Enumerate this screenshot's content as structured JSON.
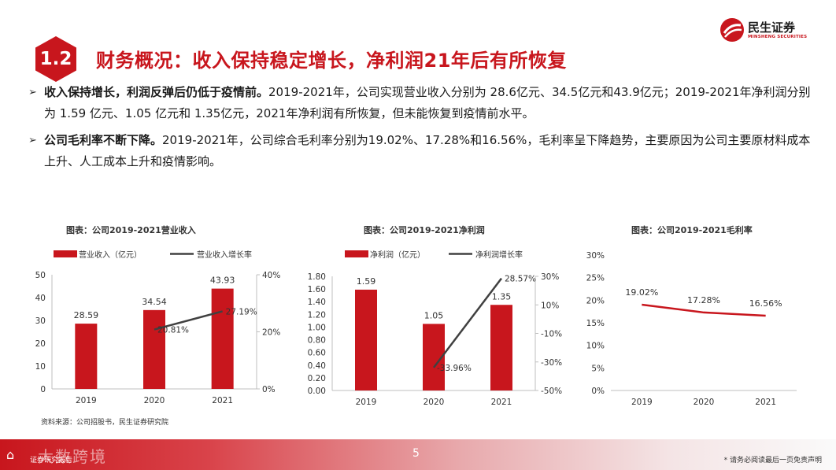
{
  "header": {
    "section_number": "1.2",
    "title": "财务概况：收入保持稳定增长，净利润21年后有所恢复",
    "logo_name": "民生证券",
    "logo_en": "MINSHENG SECURITIES"
  },
  "bullets": [
    {
      "bold": "收入保持增长，利润反弹后仍低于疫情前。",
      "text": "2019-2021年，公司实现营业收入分别为 28.6亿元、34.5亿元和43.9亿元；2019-2021年净利润分别为 1.59 亿元、1.05 亿元和 1.35亿元，2021年净利润有所恢复，但未能恢复到疫情前水平。"
    },
    {
      "bold": "公司毛利率不断下降。",
      "text": "2019-2021年，公司综合毛利率分别为19.02%、17.28%和16.56%，毛利率呈下降趋势，主要原因为公司主要原材料成本上升、人工成本上升和疫情影响。"
    }
  ],
  "colors": {
    "brand_red": "#c8161d",
    "line_gray": "#404040",
    "axis_gray": "#bfbfbf"
  },
  "chart_data": [
    {
      "type": "bar",
      "title": "图表：公司2019-2021营业收入",
      "categories": [
        "2019",
        "2020",
        "2021"
      ],
      "series": [
        {
          "name": "营业收入（亿元）",
          "type": "bar",
          "axis": "left",
          "values": [
            28.59,
            34.54,
            43.93
          ],
          "labels": [
            "28.59",
            "34.54",
            "43.93"
          ]
        },
        {
          "name": "营业收入增长率",
          "type": "line",
          "axis": "right",
          "values": [
            null,
            20.81,
            27.19
          ],
          "labels": [
            "",
            "20.81%",
            "27.19%"
          ]
        }
      ],
      "ylim": [
        0,
        50
      ],
      "yticks": [
        "0",
        "10",
        "20",
        "30",
        "40",
        "50"
      ],
      "yticks_values": [
        0,
        10,
        20,
        30,
        40,
        50
      ],
      "y2lim": [
        0,
        40
      ],
      "y2ticks": [
        "0%",
        "20%",
        "40%"
      ],
      "y2ticks_values": [
        0,
        20,
        40
      ],
      "legend_position": "top-left"
    },
    {
      "type": "bar",
      "title": "图表：公司2019-2021净利润",
      "categories": [
        "2019",
        "2020",
        "2021"
      ],
      "series": [
        {
          "name": "净利润（亿元）",
          "type": "bar",
          "axis": "left",
          "values": [
            1.59,
            1.05,
            1.35
          ],
          "labels": [
            "1.59",
            "1.05",
            "1.35"
          ]
        },
        {
          "name": "净利润增长率",
          "type": "line",
          "axis": "right",
          "values": [
            null,
            -33.96,
            28.57
          ],
          "labels": [
            "",
            "-33.96%",
            "28.57%"
          ]
        }
      ],
      "ylim": [
        0,
        1.8
      ],
      "yticks": [
        "0.00",
        "0.20",
        "0.40",
        "0.60",
        "0.80",
        "1.00",
        "1.20",
        "1.40",
        "1.60",
        "1.80"
      ],
      "yticks_values": [
        0,
        0.2,
        0.4,
        0.6,
        0.8,
        1.0,
        1.2,
        1.4,
        1.6,
        1.8
      ],
      "y2lim": [
        -50,
        30
      ],
      "y2ticks": [
        "-50%",
        "-30%",
        "-10%",
        "10%",
        "30%"
      ],
      "y2ticks_values": [
        -50,
        -30,
        -10,
        10,
        30
      ],
      "legend_position": "top-left"
    },
    {
      "type": "line",
      "title": "图表：公司2019-2021毛利率",
      "categories": [
        "2019",
        "2020",
        "2021"
      ],
      "series": [
        {
          "name": "毛利率",
          "values": [
            19.02,
            17.28,
            16.56
          ],
          "labels": [
            "19.02%",
            "17.28%",
            "16.56%"
          ]
        }
      ],
      "ylim": [
        0,
        30
      ],
      "yticks": [
        "0%",
        "5%",
        "10%",
        "15%",
        "20%",
        "25%",
        "30%"
      ],
      "yticks_values": [
        0,
        5,
        10,
        15,
        20,
        25,
        30
      ]
    }
  ],
  "source": "资料来源：公司招股书，民生证券研究院",
  "footer": {
    "left": "证券研究报告",
    "watermark": "大数跨境",
    "page_number": "5",
    "right": "* 请务必阅读最后一页免责声明"
  }
}
